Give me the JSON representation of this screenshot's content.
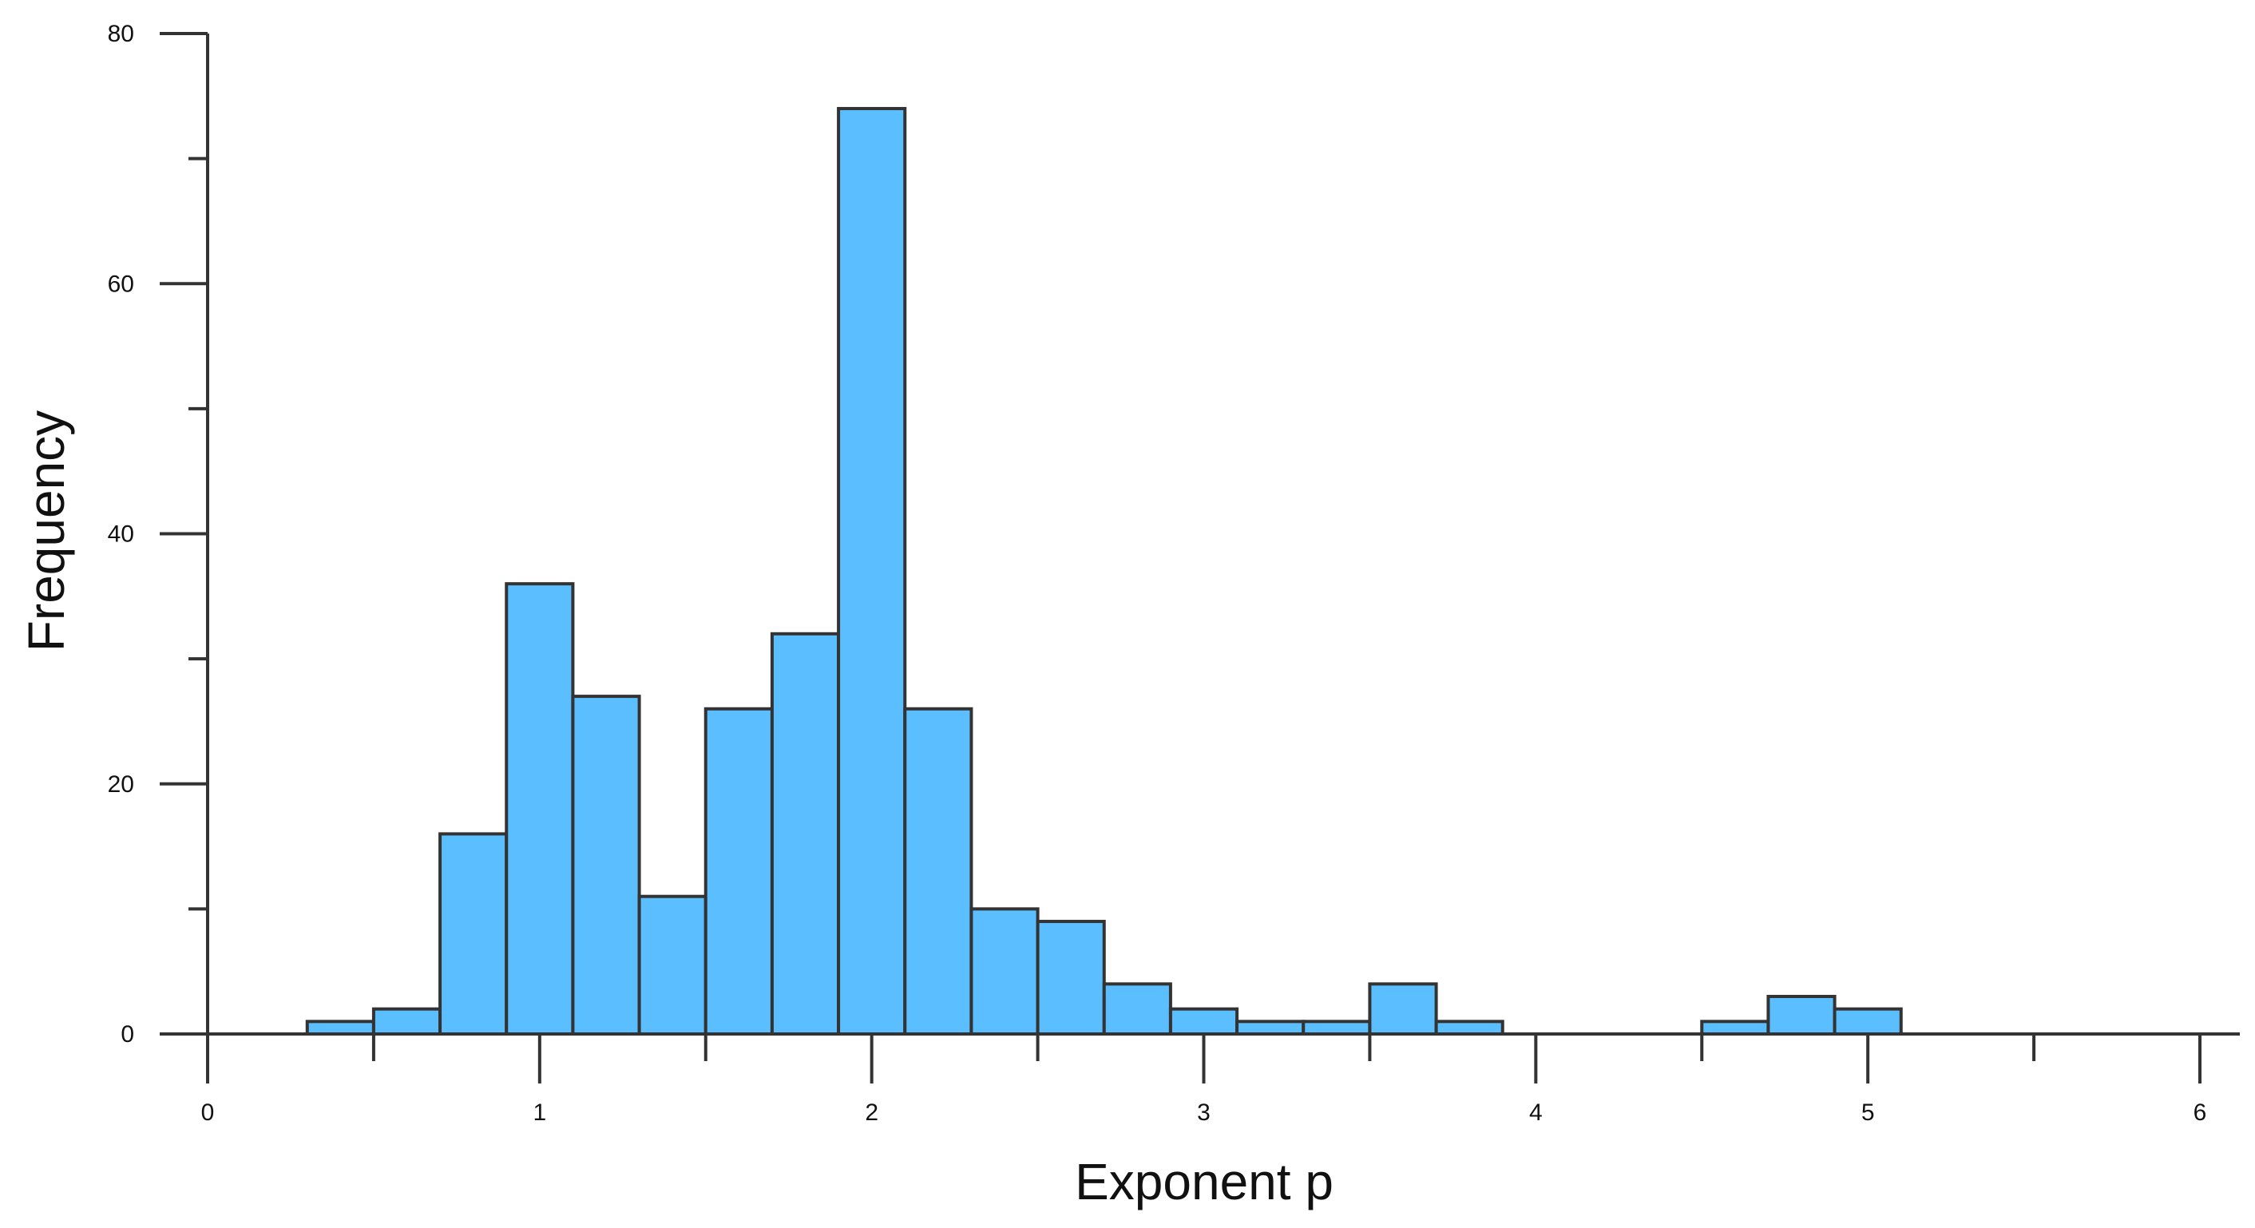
{
  "chart_data": {
    "type": "bar",
    "title": "",
    "xlabel": "Exponent p",
    "ylabel": "Frequency",
    "xlim": [
      0,
      6
    ],
    "ylim": [
      0,
      80
    ],
    "x_ticks": [
      "0",
      "1",
      "2",
      "3",
      "4",
      "5",
      "6"
    ],
    "x_minor_ticks": [
      0.5,
      1.5,
      2.5,
      3.5,
      4.5,
      5.5
    ],
    "y_ticks": [
      "0",
      "20",
      "40",
      "60",
      "80"
    ],
    "y_minor_ticks": [
      10,
      30,
      50,
      70
    ],
    "bin_width": 0.2,
    "bin_starts": [
      0.3,
      0.5,
      0.7,
      0.9,
      1.1,
      1.3,
      1.5,
      1.7,
      1.9,
      2.1,
      2.3,
      2.5,
      2.7,
      2.9,
      3.1,
      3.3,
      3.5,
      3.7,
      4.5,
      4.7,
      4.9
    ],
    "values": [
      1,
      2,
      16,
      36,
      27,
      11,
      26,
      32,
      74,
      26,
      10,
      9,
      4,
      2,
      1,
      1,
      4,
      1,
      1,
      3,
      2
    ],
    "grid": false,
    "legend": "none",
    "colors": {
      "bar_fill": "#5bbfff",
      "bar_stroke": "#333333",
      "axis": "#333333"
    }
  }
}
